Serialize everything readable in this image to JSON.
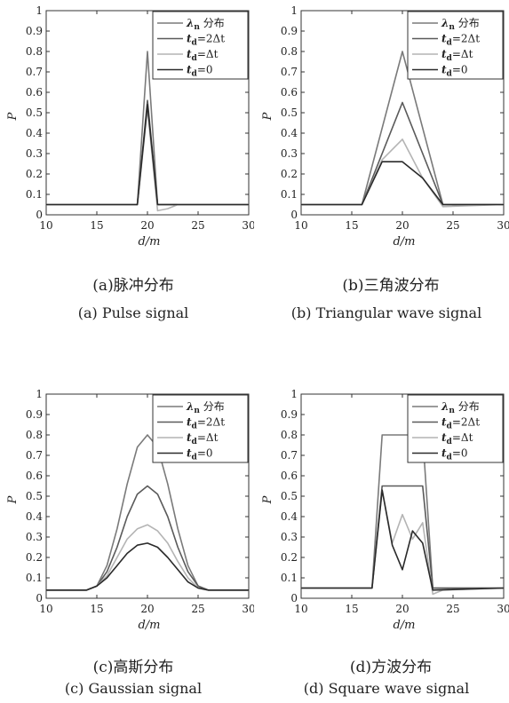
{
  "chart_data": [
    {
      "type": "line",
      "xlabel": "d/m",
      "ylabel": "P",
      "xlim": [
        10,
        30
      ],
      "ylim": [
        0,
        1
      ],
      "xticks": [
        "10",
        "15",
        "20",
        "25",
        "30"
      ],
      "yticks": [
        "0",
        "0.1",
        "0.2",
        "0.3",
        "0.4",
        "0.5",
        "0.6",
        "0.7",
        "0.8",
        "0.9",
        "1"
      ],
      "legend_position": "top-right",
      "caption_zh": "(a)脉冲分布",
      "caption_en": "(a) Pulse signal",
      "series": [
        {
          "name": "λn 分布",
          "legend_main": "λ",
          "legend_sub": "n",
          "legend_rest": " 分布",
          "color": "#7a7a7a",
          "x": [
            10,
            19,
            20,
            21,
            30
          ],
          "y": [
            0.05,
            0.05,
            0.8,
            0.05,
            0.05
          ]
        },
        {
          "name": "td=2Δt",
          "legend_main": "t",
          "legend_sub": "d",
          "legend_rest": "=2Δt",
          "color": "#5a5a5a",
          "x": [
            10,
            19,
            20,
            21,
            30
          ],
          "y": [
            0.05,
            0.05,
            0.56,
            0.05,
            0.05
          ]
        },
        {
          "name": "td=Δt",
          "legend_main": "t",
          "legend_sub": "d",
          "legend_rest": "=Δt",
          "color": "#b4b4b4",
          "x": [
            10,
            19,
            20,
            21,
            22,
            23,
            30
          ],
          "y": [
            0.05,
            0.05,
            0.52,
            0.02,
            0.03,
            0.05,
            0.05
          ]
        },
        {
          "name": "td=0",
          "legend_main": "t",
          "legend_sub": "d",
          "legend_rest": "=0",
          "color": "#2a2a2a",
          "x": [
            10,
            19,
            20,
            21,
            30
          ],
          "y": [
            0.05,
            0.05,
            0.54,
            0.05,
            0.05
          ]
        }
      ]
    },
    {
      "type": "line",
      "xlabel": "d/m",
      "ylabel": "P",
      "xlim": [
        10,
        30
      ],
      "ylim": [
        0,
        1
      ],
      "xticks": [
        "10",
        "15",
        "20",
        "25",
        "30"
      ],
      "yticks": [
        "0",
        "0.1",
        "0.2",
        "0.3",
        "0.4",
        "0.5",
        "0.6",
        "0.7",
        "0.8",
        "0.9",
        "1"
      ],
      "legend_position": "top-right",
      "caption_zh": "(b)三角波分布",
      "caption_en": "(b) Triangular wave signal",
      "series": [
        {
          "name": "λn 分布",
          "legend_main": "λ",
          "legend_sub": "n",
          "legend_rest": " 分布",
          "color": "#7a7a7a",
          "x": [
            10,
            16,
            20,
            24,
            30
          ],
          "y": [
            0.05,
            0.05,
            0.8,
            0.05,
            0.05
          ]
        },
        {
          "name": "td=2Δt",
          "legend_main": "t",
          "legend_sub": "d",
          "legend_rest": "=2Δt",
          "color": "#5a5a5a",
          "x": [
            10,
            16,
            20,
            24,
            30
          ],
          "y": [
            0.05,
            0.05,
            0.55,
            0.05,
            0.05
          ]
        },
        {
          "name": "td=Δt",
          "legend_main": "t",
          "legend_sub": "d",
          "legend_rest": "=Δt",
          "color": "#b4b4b4",
          "x": [
            10,
            16,
            18,
            20,
            22,
            24,
            30
          ],
          "y": [
            0.05,
            0.05,
            0.27,
            0.37,
            0.18,
            0.04,
            0.05
          ]
        },
        {
          "name": "td=0",
          "legend_main": "t",
          "legend_sub": "d",
          "legend_rest": "=0",
          "color": "#2a2a2a",
          "x": [
            10,
            16,
            18,
            20,
            22,
            24,
            30
          ],
          "y": [
            0.05,
            0.05,
            0.26,
            0.26,
            0.18,
            0.05,
            0.05
          ]
        }
      ]
    },
    {
      "type": "line",
      "xlabel": "d/m",
      "ylabel": "P",
      "xlim": [
        10,
        30
      ],
      "ylim": [
        0,
        1
      ],
      "xticks": [
        "10",
        "15",
        "20",
        "25",
        "30"
      ],
      "yticks": [
        "0",
        "0.1",
        "0.2",
        "0.3",
        "0.4",
        "0.5",
        "0.6",
        "0.7",
        "0.8",
        "0.9",
        "1"
      ],
      "legend_position": "top-right",
      "caption_zh": "(c)高斯分布",
      "caption_en": "(c) Gaussian signal",
      "series": [
        {
          "name": "λn 分布",
          "legend_main": "λ",
          "legend_sub": "n",
          "legend_rest": " 分布",
          "color": "#7a7a7a",
          "x": [
            10,
            14,
            15,
            16,
            17,
            18,
            19,
            20,
            21,
            22,
            23,
            24,
            25,
            26,
            30
          ],
          "y": [
            0.04,
            0.04,
            0.06,
            0.16,
            0.34,
            0.56,
            0.74,
            0.8,
            0.74,
            0.56,
            0.34,
            0.16,
            0.06,
            0.04,
            0.04
          ]
        },
        {
          "name": "td=2Δt",
          "legend_main": "t",
          "legend_sub": "d",
          "legend_rest": "=2Δt",
          "color": "#5a5a5a",
          "x": [
            10,
            14,
            15,
            16,
            17,
            18,
            19,
            20,
            21,
            22,
            23,
            24,
            25,
            26,
            30
          ],
          "y": [
            0.04,
            0.04,
            0.06,
            0.13,
            0.25,
            0.4,
            0.51,
            0.55,
            0.51,
            0.4,
            0.25,
            0.13,
            0.06,
            0.04,
            0.04
          ]
        },
        {
          "name": "td=Δt",
          "legend_main": "t",
          "legend_sub": "d",
          "legend_rest": "=Δt",
          "color": "#b4b4b4",
          "x": [
            10,
            14,
            15,
            16,
            17,
            18,
            19,
            20,
            21,
            22,
            23,
            24,
            25,
            26,
            30
          ],
          "y": [
            0.04,
            0.04,
            0.06,
            0.11,
            0.2,
            0.29,
            0.34,
            0.36,
            0.33,
            0.27,
            0.18,
            0.1,
            0.05,
            0.04,
            0.04
          ]
        },
        {
          "name": "td=0",
          "legend_main": "t",
          "legend_sub": "d",
          "legend_rest": "=0",
          "color": "#2a2a2a",
          "x": [
            10,
            14,
            15,
            16,
            17,
            18,
            19,
            20,
            21,
            22,
            23,
            24,
            25,
            26,
            30
          ],
          "y": [
            0.04,
            0.04,
            0.06,
            0.1,
            0.16,
            0.22,
            0.26,
            0.27,
            0.25,
            0.2,
            0.14,
            0.08,
            0.05,
            0.04,
            0.04
          ]
        }
      ]
    },
    {
      "type": "line",
      "xlabel": "d/m",
      "ylabel": "P",
      "xlim": [
        10,
        30
      ],
      "ylim": [
        0,
        1
      ],
      "xticks": [
        "10",
        "15",
        "20",
        "25",
        "30"
      ],
      "yticks": [
        "0",
        "0.1",
        "0.2",
        "0.3",
        "0.4",
        "0.5",
        "0.6",
        "0.7",
        "0.8",
        "0.9",
        "1"
      ],
      "legend_position": "top-right",
      "caption_zh": "(d)方波分布",
      "caption_en": "(d) Square wave signal",
      "series": [
        {
          "name": "λn 分布",
          "legend_main": "λ",
          "legend_sub": "n",
          "legend_rest": " 分布",
          "color": "#7a7a7a",
          "x": [
            10,
            17,
            18,
            22,
            23,
            30
          ],
          "y": [
            0.05,
            0.05,
            0.8,
            0.8,
            0.05,
            0.05
          ]
        },
        {
          "name": "td=2Δt",
          "legend_main": "t",
          "legend_sub": "d",
          "legend_rest": "=2Δt",
          "color": "#5a5a5a",
          "x": [
            10,
            17,
            18,
            22,
            23,
            30
          ],
          "y": [
            0.05,
            0.05,
            0.55,
            0.55,
            0.05,
            0.05
          ]
        },
        {
          "name": "td=Δt",
          "legend_main": "t",
          "legend_sub": "d",
          "legend_rest": "=Δt",
          "color": "#b4b4b4",
          "x": [
            10,
            17,
            18,
            19,
            20,
            21,
            22,
            23,
            24,
            30
          ],
          "y": [
            0.05,
            0.05,
            0.53,
            0.27,
            0.41,
            0.29,
            0.37,
            0.02,
            0.04,
            0.05
          ]
        },
        {
          "name": "td=0",
          "legend_main": "t",
          "legend_sub": "d",
          "legend_rest": "=0",
          "color": "#2a2a2a",
          "x": [
            10,
            17,
            18,
            19,
            20,
            21,
            22,
            23,
            30
          ],
          "y": [
            0.05,
            0.05,
            0.53,
            0.26,
            0.14,
            0.33,
            0.27,
            0.04,
            0.05
          ]
        }
      ]
    }
  ]
}
